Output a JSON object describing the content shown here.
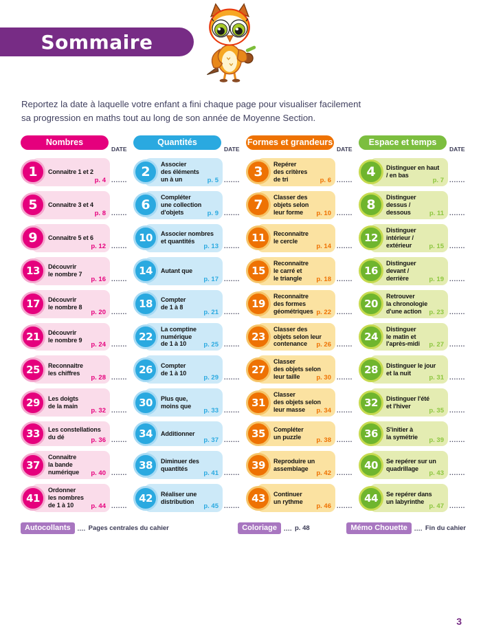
{
  "page": {
    "title": "Sommaire",
    "intro_line1": "Reportez la date à laquelle votre enfant a fini chaque page pour visualiser facilement",
    "intro_line2": "sa progression en maths tout au long de son année de Moyenne Section.",
    "date_label": "DATE",
    "dots": ".......",
    "page_number": "3",
    "colors": {
      "banner_purple": "#772C85",
      "legend_badge_purple": "#A876C0",
      "text_dark": "#3A3A55"
    }
  },
  "columns": [
    {
      "label": "Nombres",
      "colors": {
        "main": "#E5007D",
        "ring": "#F4A8CE",
        "bubble": "#FADCEA",
        "page_num": "#E5007D"
      },
      "items": [
        {
          "num": "1",
          "lines": [
            "Connaitre 1 et 2"
          ],
          "page": "p. 4"
        },
        {
          "num": "5",
          "lines": [
            "Connaitre 3 et 4"
          ],
          "page": "p. 8"
        },
        {
          "num": "9",
          "lines": [
            "Connaitre 5 et 6"
          ],
          "page": "p. 12"
        },
        {
          "num": "13",
          "lines": [
            "Découvrir",
            "le nombre 7"
          ],
          "page": "p. 16"
        },
        {
          "num": "17",
          "lines": [
            "Découvrir",
            "le nombre 8"
          ],
          "page": "p. 20"
        },
        {
          "num": "21",
          "lines": [
            "Découvrir",
            "le nombre 9"
          ],
          "page": "p. 24"
        },
        {
          "num": "25",
          "lines": [
            "Reconnaitre",
            "les chiffres"
          ],
          "page": "p. 28"
        },
        {
          "num": "29",
          "lines": [
            "Les doigts",
            "de la main"
          ],
          "page": "p. 32"
        },
        {
          "num": "33",
          "lines": [
            "Les constellations",
            "du dé"
          ],
          "page": "p. 36"
        },
        {
          "num": "37",
          "lines": [
            "Connaitre",
            "la bande",
            "numérique"
          ],
          "page": "p. 40"
        },
        {
          "num": "41",
          "lines": [
            "Ordonner",
            "les nombres",
            "de 1 à 10"
          ],
          "page": "p. 44"
        }
      ]
    },
    {
      "label": "Quantités",
      "colors": {
        "main": "#2AA9E0",
        "ring": "#A6DAF4",
        "bubble": "#CCE9F8",
        "page_num": "#2AA9E0"
      },
      "items": [
        {
          "num": "2",
          "lines": [
            "Associer",
            "des éléments",
            "un à un"
          ],
          "page": "p. 5"
        },
        {
          "num": "6",
          "lines": [
            "Compléter",
            "une collection",
            "d'objets"
          ],
          "page": "p. 9"
        },
        {
          "num": "10",
          "lines": [
            "Associer nombres",
            "et quantités"
          ],
          "page": "p. 13"
        },
        {
          "num": "14",
          "lines": [
            "Autant que"
          ],
          "page": "p. 17"
        },
        {
          "num": "18",
          "lines": [
            "Compter",
            "de 1 à 8"
          ],
          "page": "p. 21"
        },
        {
          "num": "22",
          "lines": [
            "La comptine",
            "numérique",
            "de 1 à 10"
          ],
          "page": "p. 25"
        },
        {
          "num": "26",
          "lines": [
            "Compter",
            "de 1 à 10"
          ],
          "page": "p. 29"
        },
        {
          "num": "30",
          "lines": [
            "Plus que,",
            "moins que"
          ],
          "page": "p. 33"
        },
        {
          "num": "34",
          "lines": [
            "Additionner"
          ],
          "page": "p. 37"
        },
        {
          "num": "38",
          "lines": [
            "Diminuer des",
            "quantités"
          ],
          "page": "p. 41"
        },
        {
          "num": "42",
          "lines": [
            "Réaliser une",
            "distribution"
          ],
          "page": "p. 45"
        }
      ]
    },
    {
      "label": "Formes et grandeurs",
      "colors": {
        "main": "#EE7203",
        "ring": "#F6C468",
        "bubble": "#FBE2A1",
        "page_num": "#EE7203"
      },
      "items": [
        {
          "num": "3",
          "lines": [
            "Repérer",
            "des critères",
            "de tri"
          ],
          "page": "p. 6"
        },
        {
          "num": "7",
          "lines": [
            "Classer des",
            "objets selon",
            "leur forme"
          ],
          "page": "p. 10"
        },
        {
          "num": "11",
          "lines": [
            "Reconnaitre",
            "le cercle"
          ],
          "page": "p. 14"
        },
        {
          "num": "15",
          "lines": [
            "Reconnaitre",
            "le carré et",
            "le triangle"
          ],
          "page": "p. 18"
        },
        {
          "num": "19",
          "lines": [
            "Reconnaitre",
            "des formes",
            "géométriques"
          ],
          "page": "p. 22"
        },
        {
          "num": "23",
          "lines": [
            "Classer des",
            "objets selon leur",
            "contenance"
          ],
          "page": "p. 26"
        },
        {
          "num": "27",
          "lines": [
            "Classer",
            "des objets selon",
            "leur taille"
          ],
          "page": "p. 30"
        },
        {
          "num": "31",
          "lines": [
            "Classer",
            "des objets selon",
            "leur masse"
          ],
          "page": "p. 34"
        },
        {
          "num": "35",
          "lines": [
            "Compléter",
            "un puzzle"
          ],
          "page": "p. 38"
        },
        {
          "num": "39",
          "lines": [
            "Reproduire un",
            "assemblage"
          ],
          "page": "p. 42"
        },
        {
          "num": "43",
          "lines": [
            "Continuer",
            "un rythme"
          ],
          "page": "p. 46"
        }
      ]
    },
    {
      "label": "Espace et temps",
      "colors": {
        "main": "#6FB52E",
        "header": "#7CBE3F",
        "ring": "#C6DA4F",
        "bubble": "#E4ECB2",
        "page_num": "#8CC63E"
      },
      "items": [
        {
          "num": "4",
          "lines": [
            "Distinguer en haut",
            "/ en bas"
          ],
          "page": "p. 7"
        },
        {
          "num": "8",
          "lines": [
            "Distinguer",
            "dessus /",
            "dessous"
          ],
          "page": "p. 11"
        },
        {
          "num": "12",
          "lines": [
            "Distinguer",
            "intérieur /",
            "extérieur"
          ],
          "page": "p. 15"
        },
        {
          "num": "16",
          "lines": [
            "Distinguer",
            "devant /",
            "derrière"
          ],
          "page": "p. 19"
        },
        {
          "num": "20",
          "lines": [
            "Retrouver",
            "la chronologie",
            "d'une action"
          ],
          "page": "p. 23"
        },
        {
          "num": "24",
          "lines": [
            "Distinguer",
            "le matin et",
            "l'après-midi"
          ],
          "page": "p. 27"
        },
        {
          "num": "28",
          "lines": [
            "Distinguer le jour",
            "et la nuit"
          ],
          "page": "p. 31"
        },
        {
          "num": "32",
          "lines": [
            "Distinguer l'été",
            "et l'hiver"
          ],
          "page": "p. 35"
        },
        {
          "num": "36",
          "lines": [
            "S'initier à",
            "la symétrie"
          ],
          "page": "p. 39"
        },
        {
          "num": "40",
          "lines": [
            "Se repérer sur un",
            "quadrillage"
          ],
          "page": "p. 43"
        },
        {
          "num": "44",
          "lines": [
            "Se repérer dans",
            "un labyrinthe"
          ],
          "page": "p. 47"
        }
      ]
    }
  ],
  "legend": [
    {
      "badge": "Autocollants",
      "dots": "....",
      "text": "Pages centrales du cahier"
    },
    {
      "badge": "Coloriage",
      "dots": "....",
      "text": "p. 48"
    },
    {
      "badge": "Mémo Chouette",
      "dots": "....",
      "text": "Fin du cahier"
    }
  ],
  "mascot": "owl-icon"
}
